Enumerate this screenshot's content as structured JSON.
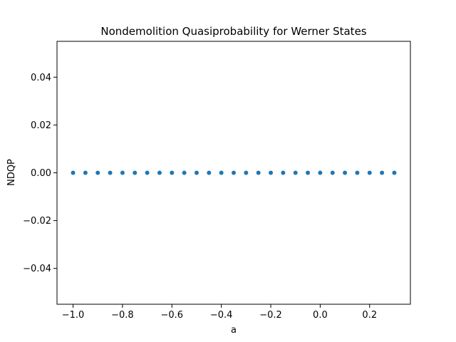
{
  "chart_data": {
    "type": "scatter",
    "title": "Nondemolition Quasiprobability for Werner States",
    "xlabel": "a",
    "ylabel": "NDQP",
    "xlim": [
      -1.065,
      0.365
    ],
    "ylim": [
      -0.055,
      0.055
    ],
    "x_ticks": [
      -1.0,
      -0.8,
      -0.6,
      -0.4,
      -0.2,
      0.0,
      0.2
    ],
    "x_tick_labels": [
      "−1.0",
      "−0.8",
      "−0.6",
      "−0.4",
      "−0.2",
      "0.0",
      "0.2"
    ],
    "y_ticks": [
      -0.04,
      -0.02,
      0.0,
      0.02,
      0.04
    ],
    "y_tick_labels": [
      "−0.04",
      "−0.02",
      "0.00",
      "0.02",
      "0.04"
    ],
    "grid": false,
    "marker_color": "#1f77b4",
    "series": [
      {
        "x": [
          -1.0,
          -0.95,
          -0.9,
          -0.85,
          -0.8,
          -0.75,
          -0.7,
          -0.65,
          -0.6,
          -0.55,
          -0.5,
          -0.45,
          -0.4,
          -0.35,
          -0.3,
          -0.25,
          -0.2,
          -0.15,
          -0.1,
          -0.05,
          0.0,
          0.05,
          0.1,
          0.15,
          0.2,
          0.25,
          0.3
        ],
        "y": [
          0,
          0,
          0,
          0,
          0,
          0,
          0,
          0,
          0,
          0,
          0,
          0,
          0,
          0,
          0,
          0,
          0,
          0,
          0,
          0,
          0,
          0,
          0,
          0,
          0,
          0,
          0
        ]
      }
    ]
  }
}
